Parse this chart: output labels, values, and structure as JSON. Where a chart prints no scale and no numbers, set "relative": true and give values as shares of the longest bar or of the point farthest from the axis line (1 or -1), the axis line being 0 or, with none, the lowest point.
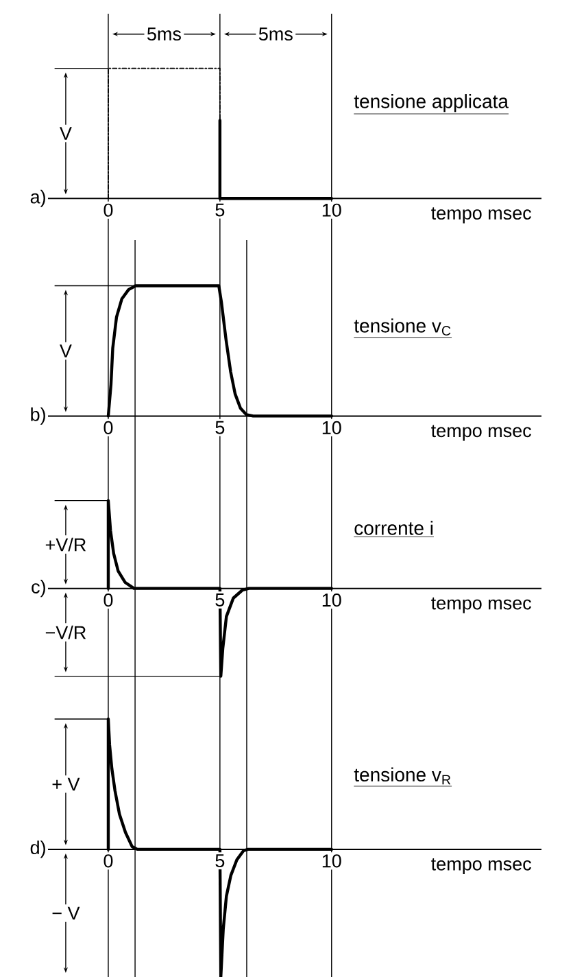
{
  "chart_data": [
    {
      "type": "line",
      "title": "tensione applicata",
      "xlabel": "tempo msec",
      "relative": true,
      "xlim": [
        -2.7,
        19.4
      ],
      "xticks": [
        0,
        5,
        10
      ],
      "series": [
        {
          "x": [
            0,
            0,
            5,
            5
          ],
          "values": [
            0,
            1,
            1,
            0
          ],
          "color": "#000000",
          "line_style": "dashed"
        },
        {
          "x": [
            5,
            5,
            10
          ],
          "values": [
            0.6,
            0,
            0
          ],
          "color": "#000000"
        }
      ],
      "ref_lines": [
        {
          "axis": "x",
          "value": 0
        },
        {
          "axis": "x",
          "value": 5
        },
        {
          "axis": "x",
          "value": 10
        }
      ],
      "annotations": [
        "a)",
        "V",
        "5ms",
        "5ms"
      ]
    },
    {
      "type": "line",
      "title": "tensione v$_{C}$",
      "xlabel": "tempo msec",
      "relative": true,
      "xlim": [
        -2.7,
        19.4
      ],
      "xticks": [
        0,
        5,
        10
      ],
      "series": [
        {
          "x": [
            0,
            0.12,
            0.2,
            0.37,
            0.61,
            0.91,
            1.22,
            4.95,
            5.07,
            5.27,
            5.48,
            5.68,
            5.92,
            6.19,
            6.49,
            10
          ],
          "values": [
            0,
            0.24,
            0.52,
            0.76,
            0.9,
            0.97,
            1,
            1,
            0.87,
            0.59,
            0.34,
            0.17,
            0.06,
            0.01,
            0,
            0
          ],
          "color": "#000000"
        }
      ],
      "ref_lines": [
        {
          "axis": "x",
          "value": 0
        },
        {
          "axis": "x",
          "value": 1.2
        },
        {
          "axis": "x",
          "value": 5
        },
        {
          "axis": "x",
          "value": 6.2
        },
        {
          "axis": "x",
          "value": 10
        }
      ],
      "annotations": [
        "b)",
        "V"
      ]
    },
    {
      "type": "line",
      "title": "corrente i",
      "xlabel": "tempo msec",
      "relative": true,
      "xlim": [
        -2.7,
        19.4
      ],
      "xticks": [
        0,
        5,
        10
      ],
      "series": [
        {
          "x": [
            0,
            0,
            0.1,
            0.24,
            0.44,
            0.75,
            1.15,
            5,
            5.04,
            5.13,
            5.29,
            5.6,
            6.0,
            6.3,
            10
          ],
          "values": [
            0,
            1,
            0.66,
            0.4,
            0.2,
            0.07,
            0,
            0,
            -1,
            -0.68,
            -0.32,
            -0.11,
            -0.02,
            0,
            0
          ],
          "color": "#000000"
        }
      ],
      "ref_lines": [
        {
          "axis": "x",
          "value": 0
        },
        {
          "axis": "x",
          "value": 1.2
        },
        {
          "axis": "x",
          "value": 5
        },
        {
          "axis": "x",
          "value": 6.2
        },
        {
          "axis": "x",
          "value": 10
        }
      ],
      "annotations": [
        "c)",
        "+V/R",
        "−V/R"
      ]
    },
    {
      "type": "line",
      "title": "tensione v$_{R}$",
      "xlabel": "tempo msec",
      "relative": true,
      "xlim": [
        -2.7,
        19.4
      ],
      "xticks": [
        0,
        5,
        10
      ],
      "series": [
        {
          "x": [
            0,
            0,
            0.06,
            0.16,
            0.3,
            0.5,
            0.77,
            1.07,
            1.3,
            5,
            5.04,
            5.15,
            5.29,
            5.49,
            5.76,
            6.06,
            6.26,
            10
          ],
          "values": [
            0,
            1,
            0.8,
            0.62,
            0.45,
            0.27,
            0.13,
            0.02,
            0,
            0,
            -0.98,
            -0.61,
            -0.36,
            -0.2,
            -0.08,
            -0.01,
            0,
            0
          ],
          "color": "#000000"
        }
      ],
      "ref_lines": [
        {
          "axis": "x",
          "value": 0
        },
        {
          "axis": "x",
          "value": 1.2
        },
        {
          "axis": "x",
          "value": 5
        },
        {
          "axis": "x",
          "value": 6.2
        },
        {
          "axis": "x",
          "value": 10
        }
      ],
      "annotations": [
        "d)",
        "+ V",
        "− V"
      ]
    }
  ]
}
